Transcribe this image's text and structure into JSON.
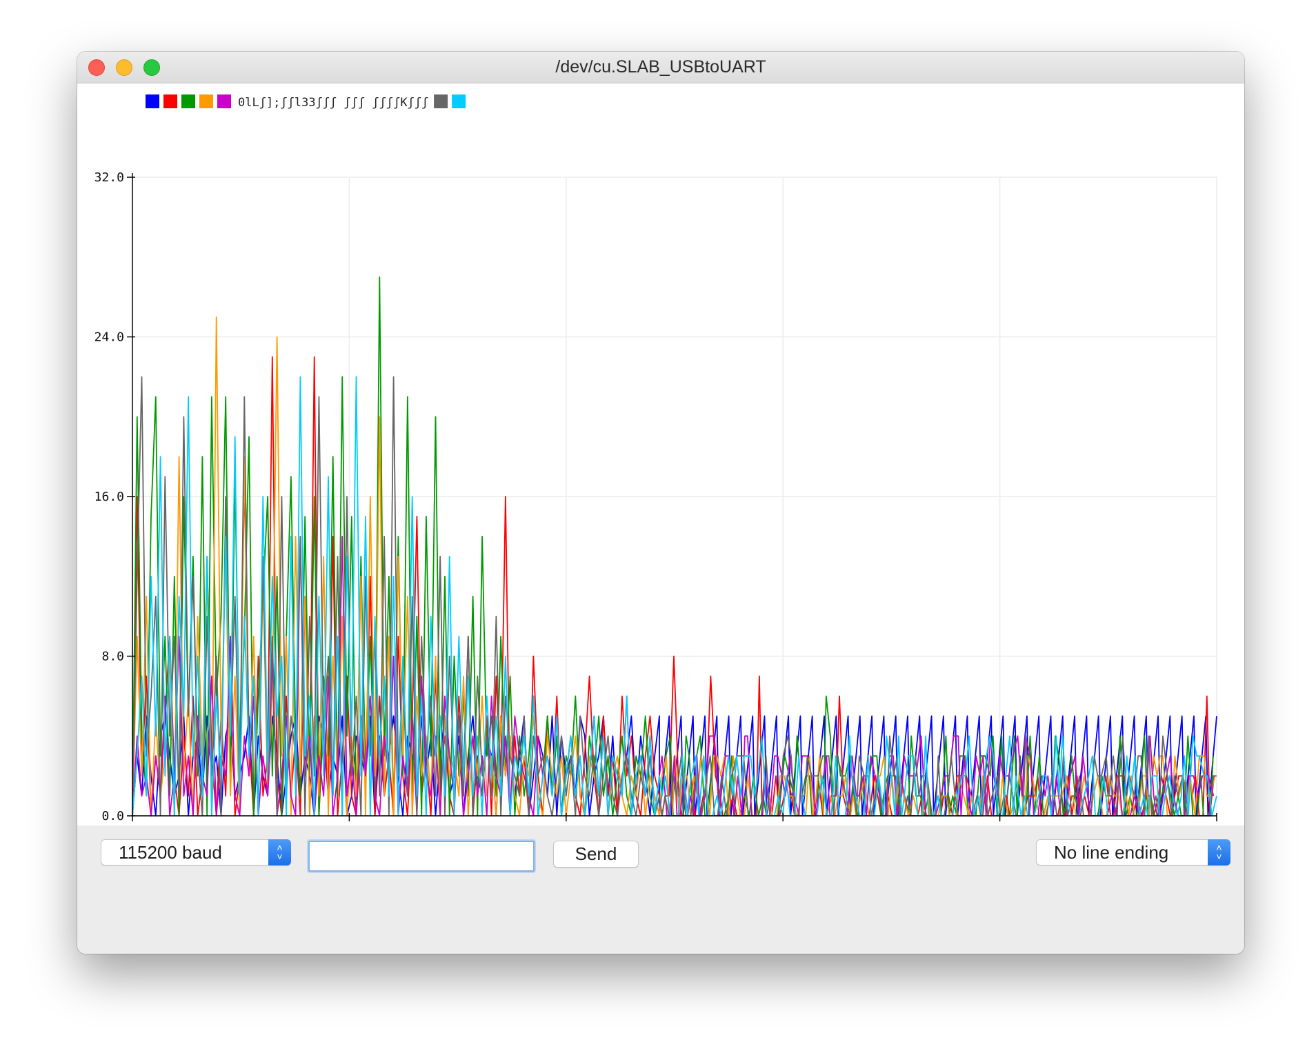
{
  "window": {
    "title": "/dev/cu.SLAB_USBtoUART"
  },
  "legend": {
    "swatches": [
      "#0000ff",
      "#ff0000",
      "#009900",
      "#ff9900",
      "#cc00cc"
    ],
    "text": "0lLʃ];ʃʃl33ʃʃʃ ʃʃʃ ʃʃʃʃKʃʃʃ",
    "swatches_after": [
      "#666666",
      "#00ccff"
    ]
  },
  "chart_data": {
    "type": "line",
    "x": {
      "start": 18417,
      "end": 18917
    },
    "xlim": [
      18417,
      18917
    ],
    "ylim": [
      0,
      32
    ],
    "xticks": [
      "18417",
      "18517",
      "18617",
      "18717",
      "18817",
      "18917"
    ],
    "yticks": [
      "0.0",
      "8.0",
      "16.0",
      "24.0",
      "32.0"
    ],
    "grid": true,
    "series": [
      {
        "color": "#0000ff",
        "values_before_18660": [
          0,
          3,
          1,
          5,
          2,
          0,
          4,
          5,
          3,
          1,
          2,
          5,
          0,
          3,
          4,
          1,
          5,
          2,
          3,
          0,
          4,
          5,
          1,
          2,
          3,
          5,
          0,
          4,
          2,
          1,
          5,
          3,
          0,
          2,
          4,
          5,
          1,
          3,
          2,
          0,
          5,
          4,
          1,
          3,
          2,
          5,
          0,
          1,
          4,
          3,
          2,
          5,
          0,
          4,
          1,
          3,
          5,
          2,
          0,
          4,
          3,
          1,
          5,
          2,
          4,
          0,
          3,
          5,
          1,
          2,
          4,
          0,
          3,
          5,
          2,
          1,
          4,
          3,
          0,
          5,
          2,
          4,
          1,
          3,
          5,
          0,
          2,
          4,
          3,
          1,
          5,
          0,
          4,
          2,
          3,
          1,
          5,
          4,
          0,
          2,
          3,
          5,
          1,
          4,
          0,
          2,
          3,
          5,
          1,
          4,
          2,
          0,
          3,
          5
        ],
        "sawtooth_after_18660": {
          "min": 0,
          "max": 5,
          "period": 5.5
        }
      },
      {
        "color": "#ff0000",
        "values_before_18660": [
          0,
          16,
          2,
          7,
          0,
          3,
          1,
          5,
          9,
          2,
          0,
          4,
          1,
          6,
          0,
          2,
          13,
          3,
          0,
          5,
          1,
          9,
          0,
          2,
          17,
          4,
          0,
          8,
          1,
          3,
          23,
          2,
          0,
          6,
          1,
          4,
          0,
          11,
          2,
          23,
          0,
          5,
          1,
          14,
          0,
          3,
          7,
          1,
          0,
          4,
          2,
          12,
          0,
          6,
          1,
          3,
          0,
          9,
          2,
          0,
          5,
          15,
          1,
          3,
          0,
          7,
          2,
          4,
          1,
          0,
          6,
          2,
          9,
          0,
          3,
          1,
          5,
          0,
          7,
          2,
          16,
          0,
          4,
          1,
          3,
          0,
          8,
          2,
          0,
          5,
          1,
          6,
          0,
          2,
          4,
          1,
          0,
          3,
          7,
          2,
          0,
          5,
          1,
          3,
          0,
          6,
          2,
          4,
          1,
          0,
          3,
          5,
          2,
          1
        ],
        "after_18660": {
          "base": [
            0,
            2
          ],
          "spikes": {
            "18666": 8,
            "18684": 7,
            "18706": 7,
            "18743": 6,
            "18912": 6
          }
        }
      },
      {
        "color": "#009900",
        "values_before_18660": [
          0,
          20,
          4,
          1,
          15,
          21,
          3,
          9,
          1,
          12,
          0,
          16,
          5,
          13,
          2,
          18,
          0,
          21,
          6,
          10,
          21,
          2,
          17,
          3,
          9,
          19,
          0,
          6,
          11,
          16,
          2,
          12,
          0,
          9,
          17,
          4,
          1,
          15,
          2,
          16,
          0,
          7,
          3,
          18,
          1,
          22,
          4,
          15,
          0,
          13,
          2,
          9,
          1,
          27,
          3,
          12,
          0,
          14,
          2,
          21,
          1,
          10,
          0,
          15,
          3,
          20,
          1,
          12,
          0,
          8,
          2,
          6,
          1,
          11,
          0,
          14,
          3,
          5,
          1,
          9,
          2,
          7,
          0,
          4,
          1,
          3,
          6,
          0,
          2,
          5,
          1,
          4,
          0,
          3,
          2,
          6,
          1,
          0,
          4,
          2,
          5,
          1,
          3,
          0,
          2,
          4,
          1,
          0,
          3,
          2,
          5,
          1,
          0,
          2
        ],
        "after_18660": {
          "base": [
            0,
            4
          ],
          "spikes": {
            "18737": 6
          }
        }
      },
      {
        "color": "#ff9900",
        "values_before_18660": [
          0,
          9,
          2,
          11,
          0,
          5,
          1,
          3,
          8,
          0,
          18,
          2,
          6,
          0,
          10,
          3,
          12,
          0,
          25,
          4,
          13,
          1,
          7,
          0,
          18,
          2,
          9,
          0,
          12,
          1,
          6,
          24,
          3,
          9,
          0,
          14,
          2,
          11,
          0,
          5,
          1,
          13,
          0,
          8,
          2,
          10,
          0,
          4,
          1,
          12,
          0,
          16,
          2,
          20,
          1,
          9,
          0,
          13,
          3,
          11,
          0,
          6,
          2,
          4,
          1,
          8,
          0,
          5,
          2,
          3,
          1,
          7,
          0,
          4,
          2,
          6,
          1,
          3,
          0,
          5,
          2,
          4,
          1,
          0,
          3,
          2,
          5,
          1,
          0,
          4,
          2,
          1,
          3,
          0,
          2,
          4,
          1,
          0,
          3,
          2,
          1,
          4,
          0,
          2,
          3,
          1,
          0,
          2,
          1,
          3,
          0,
          2,
          1,
          0
        ],
        "after_18660": {
          "base": [
            0,
            3
          ]
        }
      },
      {
        "color": "#cc00cc",
        "values_before_18660": [
          0,
          4,
          1,
          2,
          0,
          3,
          1,
          6,
          0,
          2,
          9,
          1,
          3,
          0,
          5,
          2,
          1,
          7,
          0,
          3,
          2,
          9,
          1,
          0,
          4,
          2,
          6,
          0,
          3,
          1,
          8,
          0,
          2,
          5,
          1,
          0,
          14,
          2,
          4,
          0,
          3,
          1,
          7,
          0,
          2,
          14,
          1,
          3,
          0,
          5,
          2,
          6,
          1,
          0,
          4,
          2,
          8,
          0,
          3,
          1,
          5,
          0,
          7,
          2,
          1,
          4,
          0,
          6,
          3,
          1,
          5,
          0,
          2,
          4,
          1,
          3,
          0,
          6,
          2,
          1,
          4,
          0,
          5,
          3,
          2,
          1,
          0,
          4,
          2,
          3,
          1,
          5,
          0,
          2,
          4,
          1,
          3,
          0,
          2,
          5,
          1,
          4,
          0,
          3,
          2,
          1,
          6,
          0,
          2,
          3,
          1,
          4,
          0,
          2
        ],
        "after_18660": {
          "base": [
            0,
            4
          ]
        }
      },
      {
        "color": "#666666",
        "values_before_18660": [
          0,
          12,
          22,
          3,
          6,
          11,
          0,
          17,
          4,
          9,
          1,
          20,
          5,
          12,
          3,
          0,
          10,
          2,
          8,
          0,
          16,
          4,
          11,
          1,
          21,
          3,
          7,
          0,
          13,
          2,
          9,
          0,
          16,
          1,
          5,
          3,
          14,
          0,
          10,
          2,
          21,
          4,
          8,
          1,
          13,
          0,
          16,
          2,
          6,
          0,
          12,
          3,
          9,
          1,
          14,
          0,
          22,
          2,
          7,
          1,
          11,
          0,
          9,
          3,
          6,
          1,
          13,
          0,
          8,
          2,
          5,
          1,
          9,
          0,
          7,
          2,
          4,
          1,
          10,
          0,
          6,
          3,
          2,
          1,
          5,
          0,
          4,
          2,
          3,
          1,
          0,
          2,
          4,
          1,
          3,
          0,
          5,
          2,
          1,
          3,
          0,
          2,
          4,
          1,
          0,
          2,
          3,
          1,
          0,
          2,
          1,
          3,
          0,
          1
        ],
        "after_18660": {
          "base": [
            0,
            4
          ]
        }
      },
      {
        "color": "#00ccff",
        "values_before_18660": [
          0,
          3,
          7,
          1,
          12,
          4,
          18,
          2,
          9,
          0,
          11,
          5,
          21,
          3,
          8,
          1,
          13,
          0,
          6,
          2,
          14,
          4,
          19,
          1,
          10,
          3,
          7,
          0,
          16,
          2,
          12,
          5,
          8,
          0,
          14,
          1,
          22,
          3,
          6,
          0,
          11,
          2,
          17,
          1,
          9,
          0,
          13,
          4,
          22,
          2,
          15,
          0,
          10,
          3,
          7,
          1,
          12,
          0,
          8,
          2,
          16,
          1,
          6,
          0,
          10,
          3,
          5,
          1,
          13,
          0,
          9,
          2,
          7,
          1,
          4,
          0,
          6,
          2,
          5,
          1,
          8,
          0,
          3,
          2,
          4,
          1,
          6,
          0,
          2,
          3,
          1,
          5,
          0,
          2,
          4,
          1,
          3,
          0,
          2,
          5,
          1,
          4,
          0,
          3,
          2,
          1,
          6,
          0,
          2,
          3,
          1,
          4,
          0,
          2
        ],
        "after_18660": {
          "base": [
            0,
            4
          ]
        }
      }
    ]
  },
  "controls": {
    "baud_label": "115200 baud",
    "send_label": "Send",
    "input_value": "",
    "line_ending_label": "No line ending"
  }
}
